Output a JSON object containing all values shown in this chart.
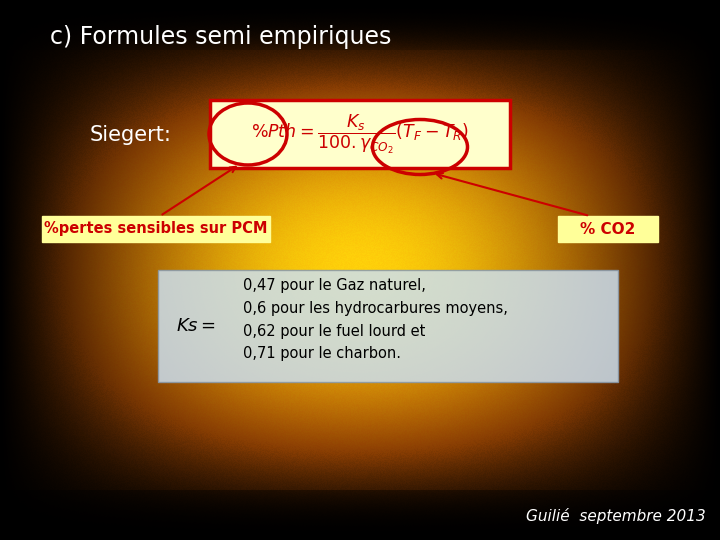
{
  "title": "c) Formules semi empiriques",
  "siegert_label": "Siegert:",
  "label_left": "%pertes sensibles sur PCM",
  "label_right": "% CO2",
  "ks_label": "Ks=",
  "ks_values": [
    "0,47 pour le Gaz naturel,",
    "0,6 pour les hydrocarbures moyens,",
    "0,62 pour le fuel lourd et",
    "0,71 pour le charbon."
  ],
  "footer": "Guilié  septembre 2013",
  "title_color": "#ffffff",
  "siegert_color": "#ffffff",
  "formula_box_bg": "#ffffcc",
  "formula_box_border": "#cc0000",
  "formula_text_color": "#cc0000",
  "label_box_bg": "#ffff99",
  "ks_box_bg": "#cce0f0",
  "ks_text_color": "#000000",
  "ks_label_color": "#000000",
  "footer_color": "#ffffff",
  "circle_color": "#cc0000",
  "arrow_color": "#cc0000"
}
